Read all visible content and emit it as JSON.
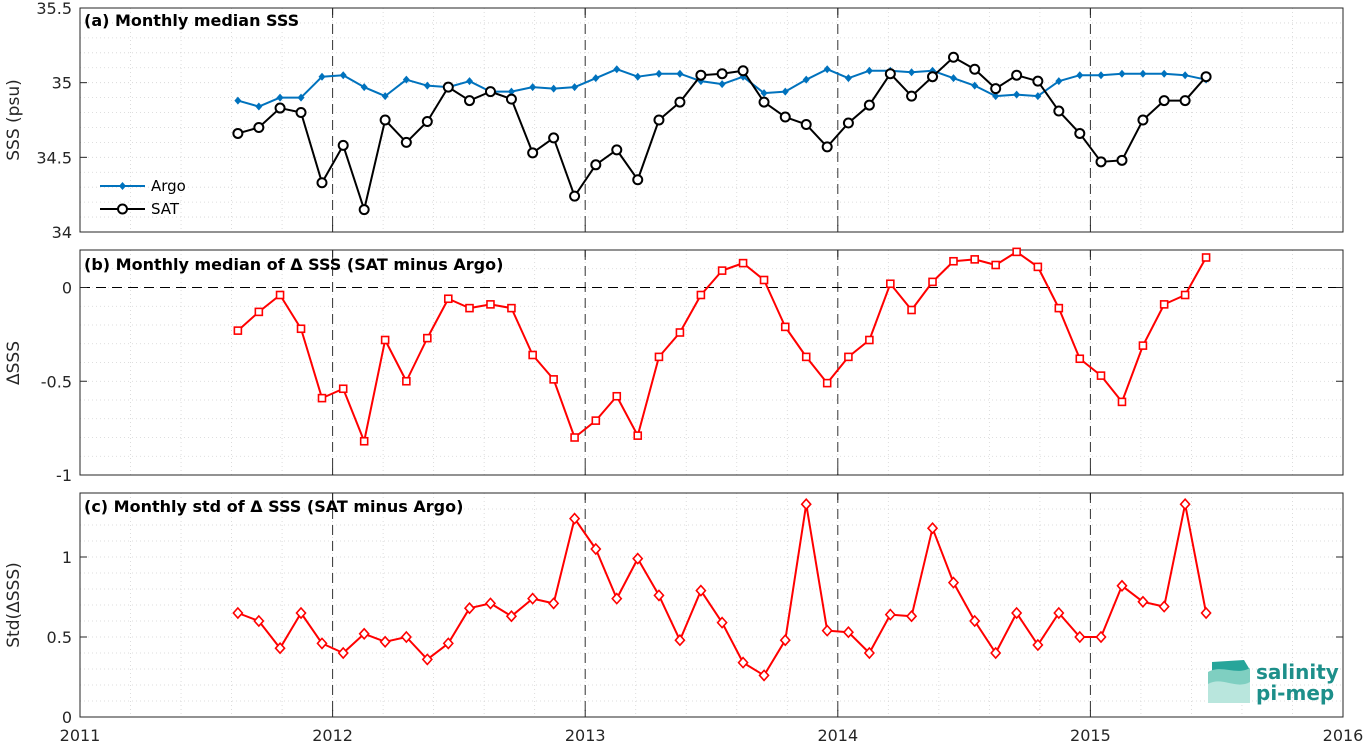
{
  "colors": {
    "argo": "#0072bd",
    "sat": "#000000",
    "delta": "#ff0000",
    "logo": "#1d8f8a"
  },
  "logo": {
    "line1": "salinity",
    "line2": "pi-mep"
  },
  "xaxis": {
    "range": [
      2011,
      2016
    ],
    "ticks": [
      2011,
      2012,
      2013,
      2014,
      2015,
      2016
    ],
    "tick_labels": [
      "2011",
      "2012",
      "2013",
      "2014",
      "2015",
      "2016"
    ]
  },
  "chart_data": [
    {
      "type": "line",
      "title": "(a) Monthly median SSS",
      "ylabel": "SSS (psu)",
      "ylim": [
        34,
        35.5
      ],
      "yticks": [
        34,
        34.5,
        35,
        35.5
      ],
      "ytick_labels": [
        "34",
        "34.5",
        "35",
        "35.5"
      ],
      "grid": true,
      "legend": "left",
      "x": [
        2011.625,
        2011.708,
        2011.792,
        2011.875,
        2011.958,
        2012.042,
        2012.125,
        2012.208,
        2012.292,
        2012.375,
        2012.458,
        2012.542,
        2012.625,
        2012.708,
        2012.792,
        2012.875,
        2012.958,
        2013.042,
        2013.125,
        2013.208,
        2013.292,
        2013.375,
        2013.458,
        2013.542,
        2013.625,
        2013.708,
        2013.792,
        2013.875,
        2013.958,
        2014.042,
        2014.125,
        2014.208,
        2014.292,
        2014.375,
        2014.458,
        2014.542,
        2014.625,
        2014.708,
        2014.792,
        2014.875,
        2014.958,
        2015.042,
        2015.125,
        2015.208,
        2015.292,
        2015.375,
        2015.458
      ],
      "series": [
        {
          "name": "Argo",
          "marker": "dot",
          "values": [
            34.88,
            34.84,
            34.9,
            34.9,
            35.04,
            35.05,
            34.97,
            34.91,
            35.02,
            34.98,
            34.97,
            35.01,
            34.94,
            34.94,
            34.97,
            34.96,
            34.97,
            35.03,
            35.09,
            35.04,
            35.06,
            35.06,
            35.01,
            34.99,
            35.04,
            34.93,
            34.94,
            35.02,
            35.09,
            35.03,
            35.08,
            35.08,
            35.07,
            35.08,
            35.03,
            34.98,
            34.91,
            34.92,
            34.91,
            35.01,
            35.05,
            35.05,
            35.06,
            35.06,
            35.06,
            35.05,
            35.02
          ]
        },
        {
          "name": "SAT",
          "marker": "circle",
          "values": [
            34.66,
            34.7,
            34.83,
            34.8,
            34.33,
            34.58,
            34.15,
            34.75,
            34.6,
            34.74,
            34.97,
            34.88,
            34.94,
            34.89,
            34.53,
            34.63,
            34.24,
            34.45,
            34.55,
            34.35,
            34.75,
            34.87,
            35.05,
            35.06,
            35.08,
            34.87,
            34.77,
            34.72,
            34.57,
            34.73,
            34.85,
            35.06,
            34.91,
            35.04,
            35.17,
            35.09,
            34.96,
            35.05,
            35.01,
            34.81,
            34.66,
            34.47,
            34.48,
            34.75,
            34.88,
            34.88,
            35.04
          ]
        }
      ]
    },
    {
      "type": "line",
      "title": "(b) Monthly median of Δ SSS (SAT minus Argo)",
      "ylabel": "ΔSSS",
      "ylim": [
        -1,
        0.2
      ],
      "yticks": [
        -1,
        -0.5,
        0
      ],
      "ytick_labels": [
        "-1",
        "-0.5",
        "0"
      ],
      "grid": true,
      "reference_line": 0,
      "x": [
        2011.625,
        2011.708,
        2011.792,
        2011.875,
        2011.958,
        2012.042,
        2012.125,
        2012.208,
        2012.292,
        2012.375,
        2012.458,
        2012.542,
        2012.625,
        2012.708,
        2012.792,
        2012.875,
        2012.958,
        2013.042,
        2013.125,
        2013.208,
        2013.292,
        2013.375,
        2013.458,
        2013.542,
        2013.625,
        2013.708,
        2013.792,
        2013.875,
        2013.958,
        2014.042,
        2014.125,
        2014.208,
        2014.292,
        2014.375,
        2014.458,
        2014.542,
        2014.625,
        2014.708,
        2014.792,
        2014.875,
        2014.958,
        2015.042,
        2015.125,
        2015.208,
        2015.292,
        2015.375,
        2015.458
      ],
      "series": [
        {
          "marker": "square",
          "values": [
            -0.23,
            -0.13,
            -0.04,
            -0.22,
            -0.59,
            -0.54,
            -0.82,
            -0.28,
            -0.5,
            -0.27,
            -0.06,
            -0.11,
            -0.09,
            -0.11,
            -0.36,
            -0.49,
            -0.8,
            -0.71,
            -0.58,
            -0.79,
            -0.37,
            -0.24,
            -0.04,
            0.09,
            0.13,
            0.04,
            -0.21,
            -0.37,
            -0.51,
            -0.37,
            -0.28,
            0.02,
            -0.12,
            0.03,
            0.14,
            0.15,
            0.12,
            0.19,
            0.11,
            -0.11,
            -0.38,
            -0.47,
            -0.61,
            -0.31,
            -0.09,
            -0.04,
            0.16
          ]
        }
      ]
    },
    {
      "type": "line",
      "title": "(c) Monthly std of Δ SSS (SAT minus Argo)",
      "ylabel": "Std(ΔSSS)",
      "ylim": [
        0,
        1.4
      ],
      "yticks": [
        0,
        0.5,
        1
      ],
      "ytick_labels": [
        "0",
        "0.5",
        "1"
      ],
      "grid": true,
      "x": [
        2011.625,
        2011.708,
        2011.792,
        2011.875,
        2011.958,
        2012.042,
        2012.125,
        2012.208,
        2012.292,
        2012.375,
        2012.458,
        2012.542,
        2012.625,
        2012.708,
        2012.792,
        2012.875,
        2012.958,
        2013.042,
        2013.125,
        2013.208,
        2013.292,
        2013.375,
        2013.458,
        2013.542,
        2013.625,
        2013.708,
        2013.792,
        2013.875,
        2013.958,
        2014.042,
        2014.125,
        2014.208,
        2014.292,
        2014.375,
        2014.458,
        2014.542,
        2014.625,
        2014.708,
        2014.792,
        2014.875,
        2014.958,
        2015.042,
        2015.125,
        2015.208,
        2015.292,
        2015.375,
        2015.458
      ],
      "series": [
        {
          "marker": "diamond",
          "values": [
            0.65,
            0.6,
            0.43,
            0.65,
            0.46,
            0.4,
            0.52,
            0.47,
            0.5,
            0.36,
            0.46,
            0.68,
            0.71,
            0.63,
            0.74,
            0.71,
            1.24,
            1.05,
            0.74,
            0.99,
            0.76,
            0.48,
            0.79,
            0.59,
            0.34,
            0.26,
            0.48,
            1.33,
            0.54,
            0.53,
            0.4,
            0.64,
            0.63,
            1.18,
            0.84,
            0.6,
            0.4,
            0.65,
            0.45,
            0.65,
            0.5,
            0.5,
            0.82,
            0.72,
            0.69,
            1.33,
            0.65
          ]
        }
      ]
    }
  ]
}
